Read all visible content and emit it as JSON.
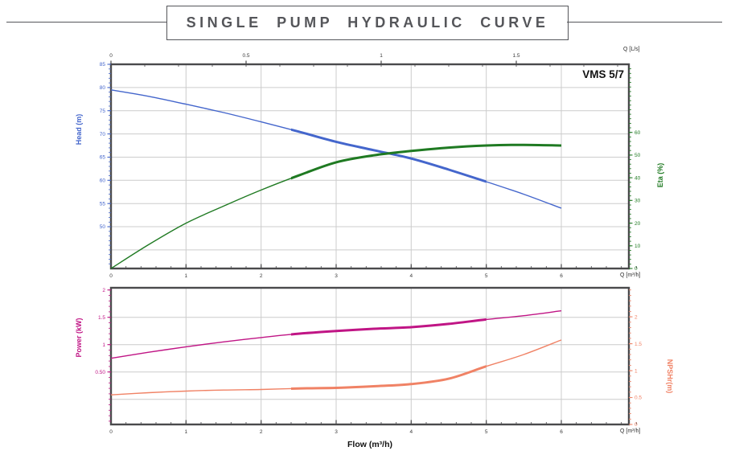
{
  "page": {
    "title": "SINGLE PUMP HYDRAULIC CURVE",
    "model_label": "VMS 5/7"
  },
  "colors": {
    "frame": "#4a4a4c",
    "grid": "#cccccc",
    "title": "#55565a",
    "x_tick": "#3a3a3a",
    "head": "#4466cc",
    "eta": "#1f7a22",
    "power": "#c01585",
    "npsh": "#f08265"
  },
  "labels": {
    "head_axis": "Head (m)",
    "eta_axis": "Eta (%)",
    "power_axis": "Power (kW)",
    "npsh_axis": "NPSHr(m)",
    "flow_axis": "Flow (m³/h)",
    "q_ls": "Q [L/s]",
    "q_m3h": "Q [m³/h]"
  },
  "chart_data": [
    {
      "id": "head_eta",
      "type": "line",
      "title": "SINGLE PUMP HYDRAULIC CURVE",
      "xlabel": "Q [m³/h]",
      "x": [
        0,
        0.5,
        1,
        1.5,
        2,
        2.5,
        3,
        3.5,
        4,
        4.5,
        5,
        5.5,
        6
      ],
      "x_range": [
        0,
        6.9
      ],
      "x_major_ticks": [
        0,
        1,
        2,
        3,
        4,
        5,
        6
      ],
      "x_minor_step": 0.2,
      "top_axis": {
        "label": "Q [L/s]",
        "ticks": [
          0,
          0.5,
          1,
          1.5
        ],
        "to_m3h": 3.6,
        "minor_step": 0.125
      },
      "left_axis": {
        "label": "Head (m)",
        "color_key": "head",
        "range": [
          41,
          85
        ],
        "major_ticks": [
          85,
          80,
          75,
          70,
          65,
          60,
          55,
          50
        ],
        "minor_step": 1,
        "minor_from": 42,
        "minor_to": 84
      },
      "right_axis": {
        "label": "Eta (%)",
        "color_key": "eta",
        "range": [
          0,
          90
        ],
        "major_ticks": [
          60,
          50,
          40,
          30,
          20,
          10,
          0
        ],
        "minor_step": 2,
        "minor_from": 0,
        "minor_to": 88
      },
      "h_gridlines": [
        80,
        75,
        70,
        65,
        60,
        55,
        50,
        45
      ],
      "series": [
        {
          "id": "head",
          "name": "Head (m)",
          "axis": "left",
          "color_key": "head",
          "bold_range": [
            2.4,
            5.0
          ],
          "values": [
            79.5,
            78.1,
            76.4,
            74.6,
            72.6,
            70.5,
            68.3,
            66.5,
            64.7,
            62.3,
            59.7,
            57.0,
            54.0
          ]
        },
        {
          "id": "eta",
          "name": "Eta (%)",
          "axis": "right",
          "color_key": "eta",
          "bold_range": [
            2.4,
            6.0
          ],
          "values": [
            0,
            10.5,
            20.0,
            27.5,
            34.6,
            41.0,
            46.8,
            49.9,
            51.8,
            53.3,
            54.2,
            54.5,
            54.2
          ]
        }
      ]
    },
    {
      "id": "power_npsh",
      "type": "line",
      "title": "",
      "xlabel": "Flow (m³/h)",
      "x": [
        0,
        0.5,
        1,
        1.5,
        2,
        2.5,
        3,
        3.5,
        4,
        4.5,
        5,
        5.5,
        6
      ],
      "x_range": [
        0,
        6.9
      ],
      "x_major_ticks": [
        0,
        1,
        2,
        3,
        4,
        5,
        6
      ],
      "x_minor_step": 0.2,
      "left_axis": {
        "label": "Power (kW)",
        "color_key": "power",
        "range": [
          -0.46,
          2.04
        ],
        "major_ticks": [
          2,
          1.5,
          1,
          0.5
        ],
        "major_tick_labels": [
          "2",
          "1.5",
          "1",
          "0.50"
        ],
        "minor_step": 0.1,
        "minor_from": -0.4,
        "minor_to": 2.0
      },
      "right_axis": {
        "label": "NPSHr(m)",
        "color_key": "npsh",
        "range": [
          0,
          2.54
        ],
        "major_ticks": [
          2,
          1.5,
          1,
          0.5,
          0
        ],
        "major_tick_labels": [
          "2",
          "1.5",
          "1",
          "0.5",
          "0"
        ],
        "minor_step": 0.1,
        "minor_from": 0,
        "minor_to": 2.5
      },
      "h_gridlines": [
        1.5,
        1.0,
        0.5,
        0.0
      ],
      "series": [
        {
          "id": "power",
          "name": "Power (kW)",
          "axis": "left",
          "color_key": "power",
          "bold_range": [
            2.4,
            5.0
          ],
          "values": [
            0.75,
            0.86,
            0.96,
            1.05,
            1.13,
            1.2,
            1.25,
            1.29,
            1.32,
            1.38,
            1.46,
            1.53,
            1.62
          ]
        },
        {
          "id": "npsh",
          "name": "NPSHr(m)",
          "axis": "right",
          "color_key": "npsh",
          "bold_range": [
            2.4,
            5.0
          ],
          "values": [
            0.55,
            0.59,
            0.62,
            0.64,
            0.65,
            0.67,
            0.68,
            0.71,
            0.75,
            0.85,
            1.08,
            1.3,
            1.57
          ]
        }
      ]
    }
  ]
}
